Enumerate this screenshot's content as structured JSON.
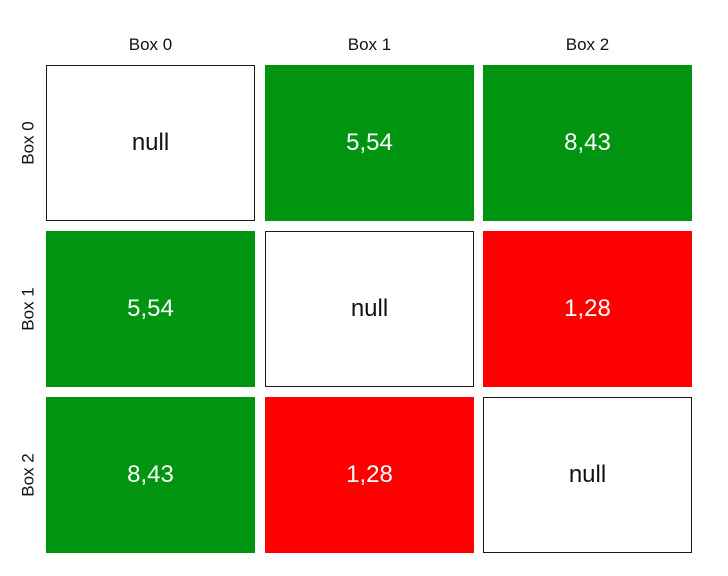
{
  "chart_data": {
    "type": "heatmap",
    "columns": [
      "Box 0",
      "Box 1",
      "Box 2"
    ],
    "rows": [
      "Box 0",
      "Box 1",
      "Box 2"
    ],
    "cells": [
      [
        {
          "text": "null",
          "kind": "null"
        },
        {
          "text": "5,54",
          "kind": "positive"
        },
        {
          "text": "8,43",
          "kind": "positive"
        }
      ],
      [
        {
          "text": "5,54",
          "kind": "positive"
        },
        {
          "text": "null",
          "kind": "null"
        },
        {
          "text": "1,28",
          "kind": "negative"
        }
      ],
      [
        {
          "text": "8,43",
          "kind": "positive"
        },
        {
          "text": "1,28",
          "kind": "negative"
        },
        {
          "text": "null",
          "kind": "null"
        }
      ]
    ],
    "values": [
      [
        null,
        5.54,
        8.43
      ],
      [
        5.54,
        null,
        1.28
      ],
      [
        8.43,
        1.28,
        null
      ]
    ],
    "colors": {
      "positive": "#009411",
      "negative": "#fe0000",
      "null": "#ffffff"
    }
  }
}
